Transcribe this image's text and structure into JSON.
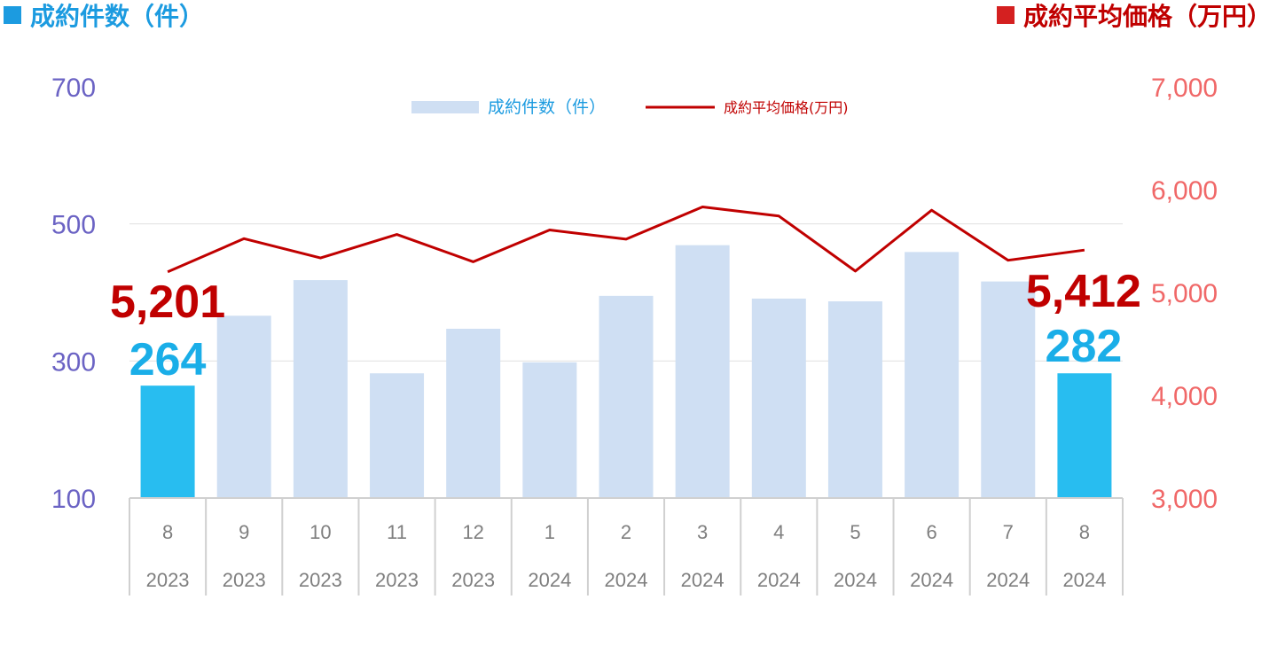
{
  "headers": {
    "left_title": "成約件数（件）",
    "right_title": "成約平均価格（万円）",
    "left_color": "#1c9be0",
    "right_color": "#d42020"
  },
  "chart_data": {
    "type": "bar",
    "categories": [
      "8",
      "9",
      "10",
      "11",
      "12",
      "1",
      "2",
      "3",
      "4",
      "5",
      "6",
      "7",
      "8"
    ],
    "years": [
      "2023",
      "2023",
      "2023",
      "2023",
      "2023",
      "2024",
      "2024",
      "2024",
      "2024",
      "2024",
      "2024",
      "2024",
      "2024"
    ],
    "series": [
      {
        "name": "成約件数（件）",
        "type": "bar",
        "axis": "left",
        "values": [
          264,
          366,
          418,
          282,
          347,
          298,
          395,
          469,
          391,
          387,
          459,
          416,
          282
        ],
        "color": "#cfdff3",
        "highlight_color": "#28bdf0",
        "highlight_indices": [
          0,
          12
        ]
      },
      {
        "name": "成約平均価格(万円)",
        "type": "line",
        "axis": "right",
        "values": [
          5201,
          5523,
          5335,
          5564,
          5298,
          5608,
          5518,
          5832,
          5743,
          5208,
          5800,
          5313,
          5412
        ],
        "color": "#c00000"
      }
    ],
    "left_axis": {
      "ylim": [
        100,
        700
      ],
      "ticks": [
        "100",
        "300",
        "500",
        "700"
      ],
      "color": "#6b63c4"
    },
    "right_axis": {
      "ylim": [
        3000,
        7000
      ],
      "ticks": [
        "3,000",
        "4,000",
        "5,000",
        "6,000",
        "7,000"
      ],
      "color": "#f06868"
    },
    "annotations": [
      {
        "text": "5,201",
        "index": 0,
        "series": 1,
        "color": "#c00000"
      },
      {
        "text": "264",
        "index": 0,
        "series": 0,
        "color": "#1aaee8"
      },
      {
        "text": "5,412",
        "index": 12,
        "series": 1,
        "color": "#c00000"
      },
      {
        "text": "282",
        "index": 12,
        "series": 0,
        "color": "#1aaee8"
      }
    ],
    "legend": {
      "placement": "top-center",
      "items": [
        "成約件数（件）",
        "成約平均価格(万円)"
      ]
    },
    "grid": true
  }
}
